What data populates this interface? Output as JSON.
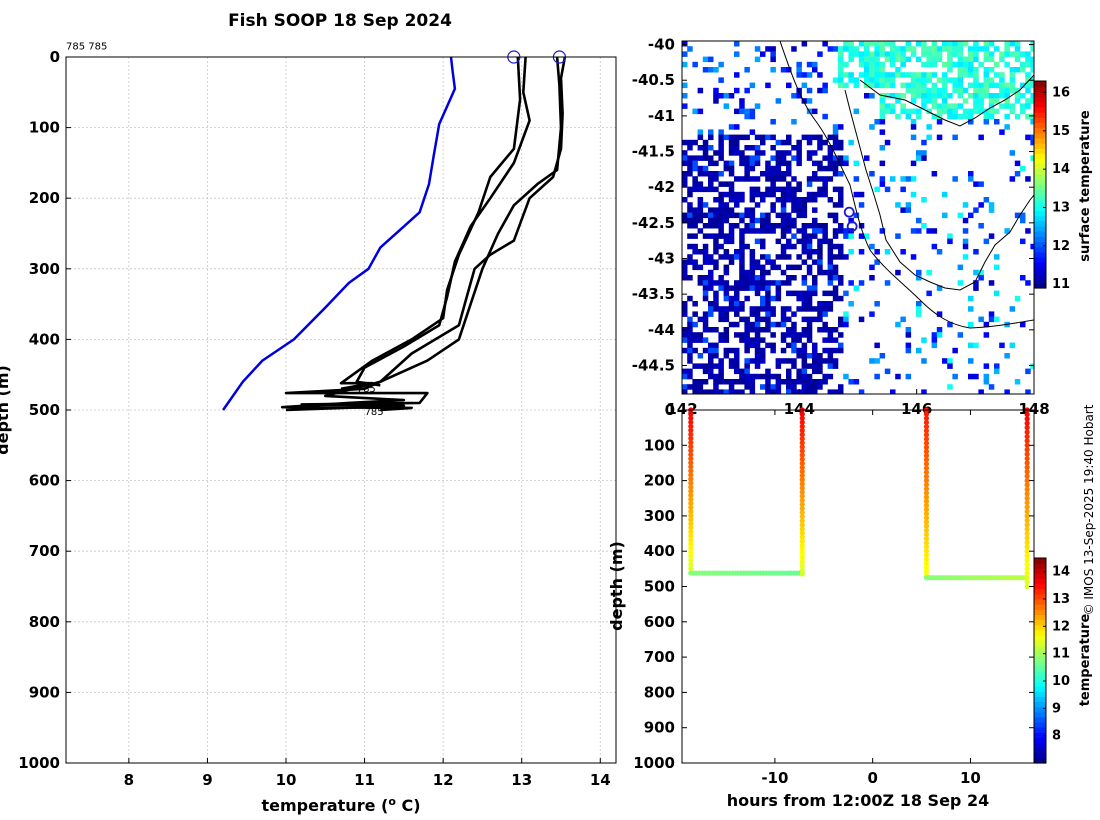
{
  "title": "Fish SOOP 18 Sep 2024",
  "credit": "© IMOS 13-Sep-2025 19:40 Hobart",
  "colors": {
    "profile_main": "#000000",
    "profile_ref": "#0000dd",
    "marker": "#1a1ad6"
  },
  "chart_data": [
    {
      "id": "profile",
      "type": "line",
      "xlabel": "temperature (o C)",
      "ylabel": "depth (m)",
      "xlim": [
        7.2,
        14.2
      ],
      "ylim": [
        0,
        1000
      ],
      "xticks": [
        8,
        9,
        10,
        11,
        12,
        13,
        14
      ],
      "yticks": [
        0,
        100,
        200,
        300,
        400,
        500,
        600,
        700,
        800,
        900,
        1000
      ],
      "grid": true,
      "annotations": [
        {
          "text": "785 785",
          "x": 7.2,
          "y": -15
        },
        {
          "text": "785",
          "x": 10.9,
          "y": 470
        },
        {
          "text": "785",
          "x": 11.0,
          "y": 503
        }
      ],
      "series": [
        {
          "name": "reference",
          "color": "#0000dd",
          "points": [
            [
              12.1,
              0
            ],
            [
              12.12,
              20
            ],
            [
              12.15,
              45
            ],
            [
              12.05,
              70
            ],
            [
              11.95,
              95
            ],
            [
              11.88,
              140
            ],
            [
              11.82,
              180
            ],
            [
              11.7,
              220
            ],
            [
              11.5,
              240
            ],
            [
              11.2,
              270
            ],
            [
              11.05,
              300
            ],
            [
              10.8,
              320
            ],
            [
              10.5,
              355
            ],
            [
              10.1,
              400
            ],
            [
              9.7,
              430
            ],
            [
              9.45,
              460
            ],
            [
              9.2,
              500
            ]
          ]
        },
        {
          "name": "cast-1",
          "color": "#000000",
          "points": [
            [
              12.95,
              0
            ],
            [
              12.98,
              60
            ],
            [
              12.9,
              130
            ],
            [
              12.6,
              170
            ],
            [
              12.45,
              220
            ],
            [
              12.2,
              280
            ],
            [
              12.05,
              330
            ],
            [
              12.0,
              370
            ],
            [
              11.6,
              400
            ],
            [
              11.1,
              430
            ],
            [
              10.7,
              462
            ],
            [
              11.1,
              462
            ],
            [
              10.7,
              470
            ]
          ]
        },
        {
          "name": "cast-2",
          "color": "#000000",
          "points": [
            [
              13.05,
              0
            ],
            [
              13.02,
              50
            ],
            [
              13.1,
              90
            ],
            [
              12.9,
              150
            ],
            [
              12.6,
              200
            ],
            [
              12.35,
              240
            ],
            [
              12.15,
              290
            ],
            [
              12.05,
              340
            ],
            [
              11.95,
              380
            ],
            [
              11.5,
              410
            ],
            [
              11.0,
              440
            ],
            [
              10.9,
              460
            ],
            [
              11.2,
              465
            ]
          ]
        },
        {
          "name": "cast-3",
          "color": "#000000",
          "points": [
            [
              13.45,
              0
            ],
            [
              13.48,
              40
            ],
            [
              13.5,
              100
            ],
            [
              13.45,
              160
            ],
            [
              13.2,
              180
            ],
            [
              12.9,
              210
            ],
            [
              12.7,
              250
            ],
            [
              12.5,
              300
            ],
            [
              12.35,
              350
            ],
            [
              12.2,
              400
            ],
            [
              11.8,
              430
            ],
            [
              11.4,
              450
            ],
            [
              11.0,
              470
            ],
            [
              10.0,
              476
            ],
            [
              11.8,
              476
            ],
            [
              11.7,
              490
            ],
            [
              10.2,
              492
            ],
            [
              11.5,
              494
            ],
            [
              10.0,
              500
            ]
          ]
        },
        {
          "name": "cast-4",
          "color": "#000000",
          "points": [
            [
              13.55,
              0
            ],
            [
              13.5,
              30
            ],
            [
              13.52,
              80
            ],
            [
              13.5,
              130
            ],
            [
              13.4,
              170
            ],
            [
              13.1,
              200
            ],
            [
              13.0,
              230
            ],
            [
              12.9,
              260
            ],
            [
              12.6,
              280
            ],
            [
              12.4,
              300
            ],
            [
              12.3,
              340
            ],
            [
              12.2,
              380
            ],
            [
              11.6,
              420
            ],
            [
              11.2,
              460
            ],
            [
              10.5,
              480
            ],
            [
              11.5,
              486
            ],
            [
              10.8,
              490
            ],
            [
              9.95,
              496
            ],
            [
              11.6,
              497
            ],
            [
              11.2,
              500
            ]
          ]
        }
      ],
      "markers": [
        [
          12.9,
          0
        ],
        [
          13.48,
          0
        ]
      ]
    },
    {
      "id": "map",
      "type": "heatmap",
      "xlim": [
        142.0,
        148.0
      ],
      "ylim": [
        -44.9,
        -39.95
      ],
      "xticks": [
        142,
        144,
        146,
        148
      ],
      "xtick_labels": [
        "142",
        "144",
        "146",
        "148"
      ],
      "yticks": [
        -40,
        -40.5,
        -41,
        -41.5,
        -42,
        -42.5,
        -43,
        -43.5,
        -44,
        -44.5
      ],
      "colorbar": {
        "label": "surface temperature",
        "min": 10.9,
        "max": 16.3,
        "ticks": [
          11,
          12,
          13,
          14,
          15,
          16
        ]
      },
      "markers": [
        [
          144.85,
          -42.35
        ],
        [
          144.9,
          -42.55
        ]
      ]
    },
    {
      "id": "hovmoller",
      "type": "scatter",
      "xlabel": "hours from 12:00Z 18 Sep 24",
      "ylabel": "depth (m)",
      "xlim": [
        -19.5,
        16.5
      ],
      "ylim": [
        0,
        1000
      ],
      "xticks": [
        -10,
        0,
        10
      ],
      "yticks": [
        0,
        100,
        200,
        300,
        400,
        500,
        600,
        700,
        800,
        900,
        1000
      ],
      "colorbar": {
        "label": "temperature",
        "min": 7.0,
        "max": 14.5,
        "ticks": [
          8,
          9,
          10,
          11,
          12,
          13,
          14
        ]
      },
      "segments": [
        {
          "name": "descent-1",
          "x": -18.6,
          "d0": 0,
          "d1": 460,
          "t0": 13.6,
          "t1": 11.4
        },
        {
          "name": "bottom-1",
          "x0": -18.6,
          "x1": -7.2,
          "d": 462,
          "t0": 10.8,
          "t1": 10.6
        },
        {
          "name": "ascent-1",
          "x": -7.2,
          "d0": 465,
          "d1": 0,
          "t0": 11.4,
          "t1": 13.6
        },
        {
          "name": "descent-2",
          "x": 5.5,
          "d0": 0,
          "d1": 470,
          "t0": 13.4,
          "t1": 11.6
        },
        {
          "name": "bottom-2",
          "x0": 5.5,
          "x1": 15.6,
          "d": 475,
          "t0": 10.8,
          "t1": 11.2
        },
        {
          "name": "ascent-2",
          "x": 15.8,
          "d0": 500,
          "d1": 0,
          "t0": 11.4,
          "t1": 13.6
        }
      ]
    }
  ]
}
